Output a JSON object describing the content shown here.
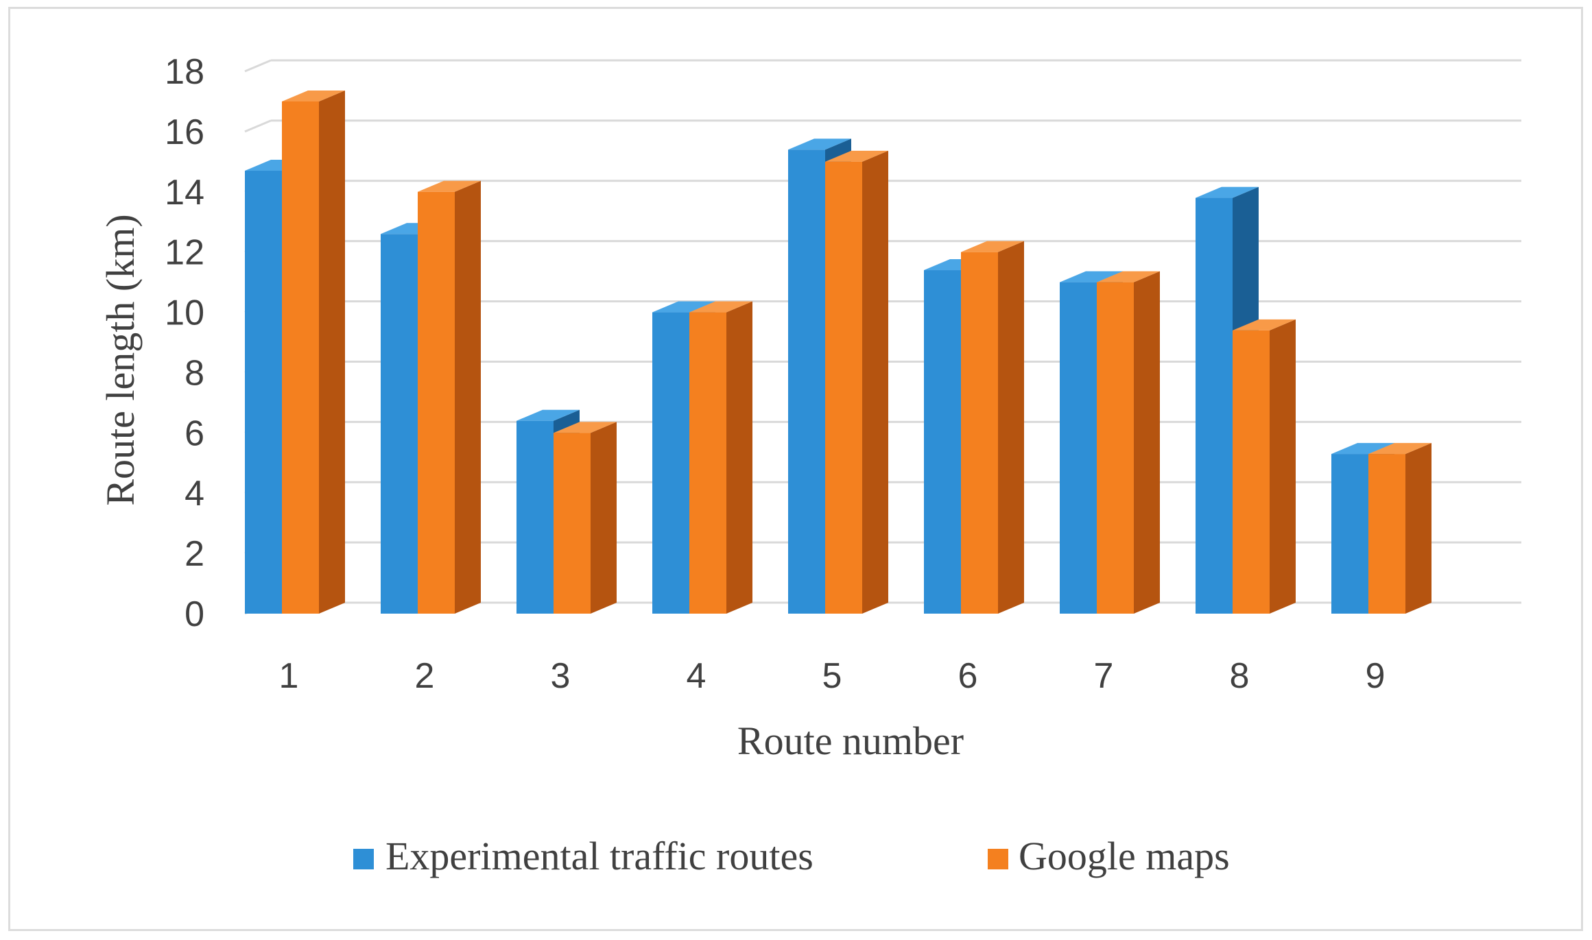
{
  "chart_data": {
    "type": "bar",
    "title": "",
    "xlabel": "Route number",
    "ylabel": "Route length (km)",
    "ylim": [
      0,
      18
    ],
    "yticks": [
      "0",
      "2",
      "4",
      "6",
      "8",
      "10",
      "12",
      "14",
      "16",
      "18"
    ],
    "categories": [
      "1",
      "2",
      "3",
      "4",
      "5",
      "6",
      "7",
      "8",
      "9"
    ],
    "series": [
      {
        "name": "Experimental traffic routes",
        "color": "#2e8fd6",
        "side_color": "#1a5f95",
        "top_color": "#4aa6e6",
        "values": [
          14.7,
          12.6,
          6.4,
          10.0,
          15.4,
          11.4,
          11.0,
          13.8,
          5.3
        ]
      },
      {
        "name": "Google maps",
        "color": "#f4801f",
        "side_color": "#b55410",
        "top_color": "#f89a48",
        "values": [
          17.0,
          14.0,
          6.0,
          10.0,
          15.0,
          12.0,
          11.0,
          9.4,
          5.3
        ]
      }
    ],
    "grid": true,
    "legend_position": "bottom"
  }
}
